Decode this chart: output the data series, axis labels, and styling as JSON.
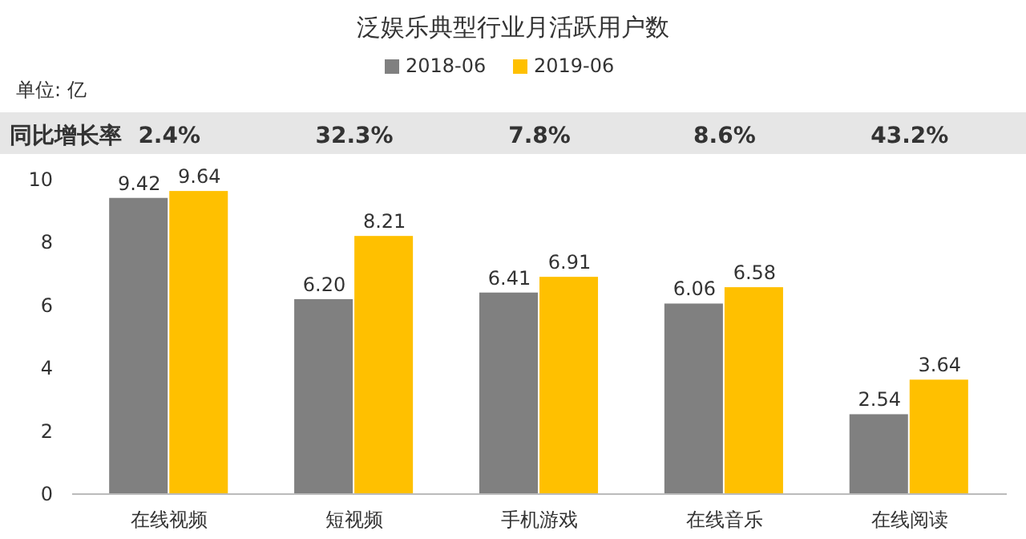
{
  "chart_data": {
    "type": "bar",
    "title": "泛娱乐典型行业月活跃用户数",
    "subtitle": "单位: 亿",
    "categories": [
      "在线视频",
      "短视频",
      "手机游戏",
      "在线音乐",
      "在线阅读"
    ],
    "series": [
      {
        "name": "2018-06",
        "color": "#808080",
        "values": [
          9.42,
          6.2,
          6.41,
          6.06,
          2.54
        ],
        "value_labels": [
          "9.42",
          "6.20",
          "6.41",
          "6.06",
          "2.54"
        ]
      },
      {
        "name": "2019-06",
        "color": "#ffc000",
        "values": [
          9.64,
          8.21,
          6.91,
          6.58,
          3.64
        ],
        "value_labels": [
          "9.64",
          "8.21",
          "6.91",
          "6.58",
          "3.64"
        ]
      }
    ],
    "annotations": [
      "同比增长率",
      "2.4%",
      "32.3%",
      "7.8%",
      "8.6%",
      "43.2%"
    ],
    "ylim": [
      0,
      10
    ],
    "yticks": [
      0,
      2,
      4,
      6,
      8,
      10
    ],
    "grid": false,
    "legend": "top"
  }
}
